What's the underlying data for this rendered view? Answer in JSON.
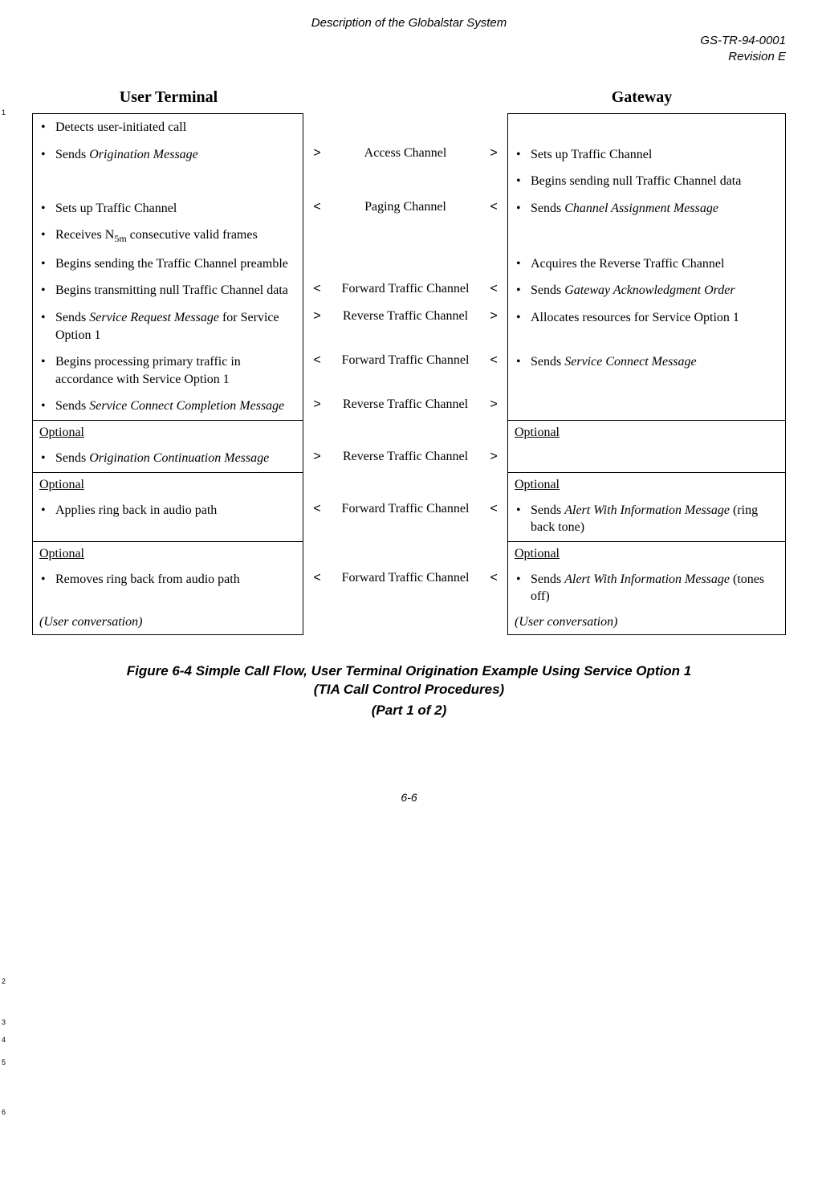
{
  "header": {
    "center": "Description of the Globalstar System",
    "doc_id": "GS-TR-94-0001",
    "revision": "Revision E"
  },
  "line_markers": {
    "m1": "1",
    "m2": "2",
    "m3": "3",
    "m4": "4",
    "m5": "5",
    "m6": "6"
  },
  "titles": {
    "left": "User Terminal",
    "right": "Gateway"
  },
  "rows": {
    "r1": {
      "left": "Detects user-initiated call"
    },
    "r2": {
      "left_pre": "Sends ",
      "left_em": "Origination Message",
      "a1": ">",
      "mid": "Access Channel",
      "a2": ">",
      "right": "Sets up Traffic Channel"
    },
    "r3": {
      "right": "Begins sending null Traffic Channel data"
    },
    "r4": {
      "left": "Sets up Traffic Channel",
      "a1": "<",
      "mid": "Paging Channel",
      "a2": "<",
      "right_pre": "Sends ",
      "right_em": "Channel Assignment Message"
    },
    "r5": {
      "left_pre": "Receives N",
      "left_sub": "5m",
      "left_post": " consecutive valid frames"
    },
    "r6": {
      "left": "Begins sending the Traffic Channel preamble",
      "right": "Acquires the Reverse Traffic Channel"
    },
    "r7": {
      "left": "Begins transmitting null Traffic Channel data",
      "a1": "<",
      "mid": "Forward Traffic Channel",
      "a2": "<",
      "right_pre": "Sends ",
      "right_em": "Gateway Acknowledgment Order"
    },
    "r8": {
      "left_pre": "Sends ",
      "left_em": "Service Request Message",
      "left_post": " for Service Option 1",
      "a1": ">",
      "mid": "Reverse Traffic Channel",
      "a2": ">",
      "right": "Allocates resources for Service Option 1"
    },
    "r9": {
      "left": "Begins processing primary traffic in accordance with Service Option 1",
      "a1": "<",
      "mid": "Forward Traffic Channel",
      "a2": "<",
      "right_pre": "Sends ",
      "right_em": "Service Connect Message"
    },
    "r10": {
      "left_pre": "Sends ",
      "left_em": "Service Connect Completion Message",
      "a1": ">",
      "mid": "Reverse Traffic Channel",
      "a2": ">"
    },
    "opt_label": "Optional",
    "r11": {
      "left_pre": "Sends ",
      "left_em": "Origination Continuation Message",
      "a1": ">",
      "mid": "Reverse Traffic Channel",
      "a2": ">"
    },
    "r12": {
      "left": "Applies ring back in audio path",
      "a1": "<",
      "mid": "Forward Traffic Channel",
      "a2": "<",
      "right_pre": "Sends ",
      "right_em": "Alert With Information Message",
      "right_post": " (ring back tone)"
    },
    "r13": {
      "left": "Removes ring back from audio path",
      "a1": "<",
      "mid": "Forward Traffic Channel",
      "a2": "<",
      "right_pre": "Sends ",
      "right_em": "Alert With Information Message",
      "right_post": " (tones off)"
    },
    "r14": {
      "left": "(User conversation)",
      "right": "(User conversation)"
    }
  },
  "caption": {
    "line1": "Figure 6-4 Simple Call Flow, User Terminal Origination Example Using Service Option 1",
    "line2": "(TIA Call Control Procedures)",
    "part": "(Part 1 of 2)"
  },
  "page_number": "6-6"
}
